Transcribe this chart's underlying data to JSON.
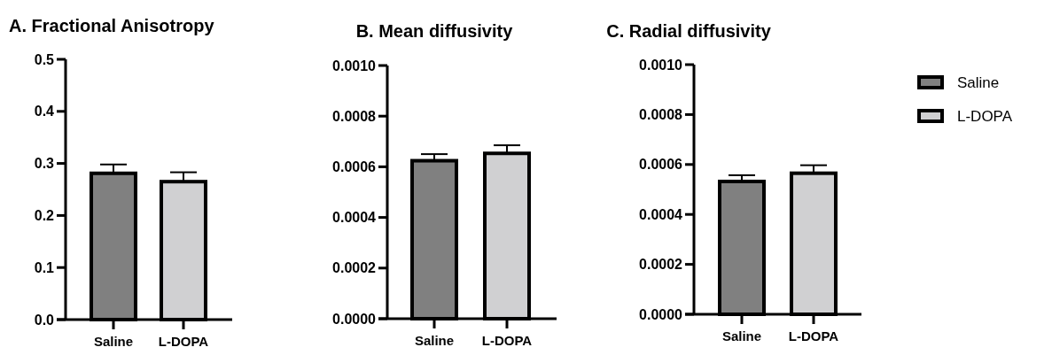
{
  "chart_data": [
    {
      "type": "bar",
      "title": "A. Fractional Anisotropy",
      "categories": [
        "Saline",
        "L-DOPA"
      ],
      "series": [
        {
          "color": "#808080",
          "values": [
            0.281,
            null
          ],
          "errors": [
            0.017,
            null
          ]
        },
        {
          "color": "#d0d0d2",
          "values": [
            null,
            0.265
          ],
          "errors": [
            null,
            0.018
          ]
        }
      ],
      "ylim": [
        0,
        0.5
      ],
      "yticks": [
        {
          "value": 0,
          "label": "0.0"
        },
        0.1,
        0.2,
        0.3,
        0.4,
        0.5
      ]
    },
    {
      "type": "bar",
      "title": "B. Mean diffusivity",
      "categories": [
        "Saline",
        "L-DOPA"
      ],
      "series": [
        {
          "color": "#808080",
          "values": [
            0.000624,
            null
          ],
          "errors": [
            2.6e-05,
            null
          ]
        },
        {
          "color": "#d0d0d2",
          "values": [
            null,
            0.000653
          ],
          "errors": [
            null,
            3.2e-05
          ]
        }
      ],
      "ylim": [
        0,
        0.001
      ],
      "yticks": [
        {
          "value": 0,
          "label": "0.0000"
        },
        {
          "value": 0.0002,
          "label": "0.0002"
        },
        {
          "value": 0.0004,
          "label": "0.0004"
        },
        {
          "value": 0.0006,
          "label": "0.0006"
        },
        {
          "value": 0.0008,
          "label": "0.0008"
        },
        {
          "value": 0.001,
          "label": "0.0010"
        }
      ]
    },
    {
      "type": "bar",
      "title": "C. Radial diffusivity",
      "categories": [
        "Saline",
        "L-DOPA"
      ],
      "series": [
        {
          "name": "Saline",
          "color": "#808080",
          "values": [
            0.000532,
            null
          ],
          "errors": [
            2.5e-05,
            null
          ]
        },
        {
          "name": "L-DOPA",
          "color": "#d0d0d2",
          "values": [
            null,
            0.000565
          ],
          "errors": [
            null,
            3.2e-05
          ]
        }
      ],
      "ylim": [
        0,
        0.001
      ],
      "yticks": [
        {
          "value": 0,
          "label": "0.0000"
        },
        {
          "value": 0.0002,
          "label": "0.0002"
        },
        {
          "value": 0.0004,
          "label": "0.0004"
        },
        {
          "value": 0.0006,
          "label": "0.0006"
        },
        {
          "value": 0.0008,
          "label": "0.0008"
        },
        {
          "value": 0.001,
          "label": "0.0010"
        }
      ],
      "legend": "right"
    }
  ]
}
